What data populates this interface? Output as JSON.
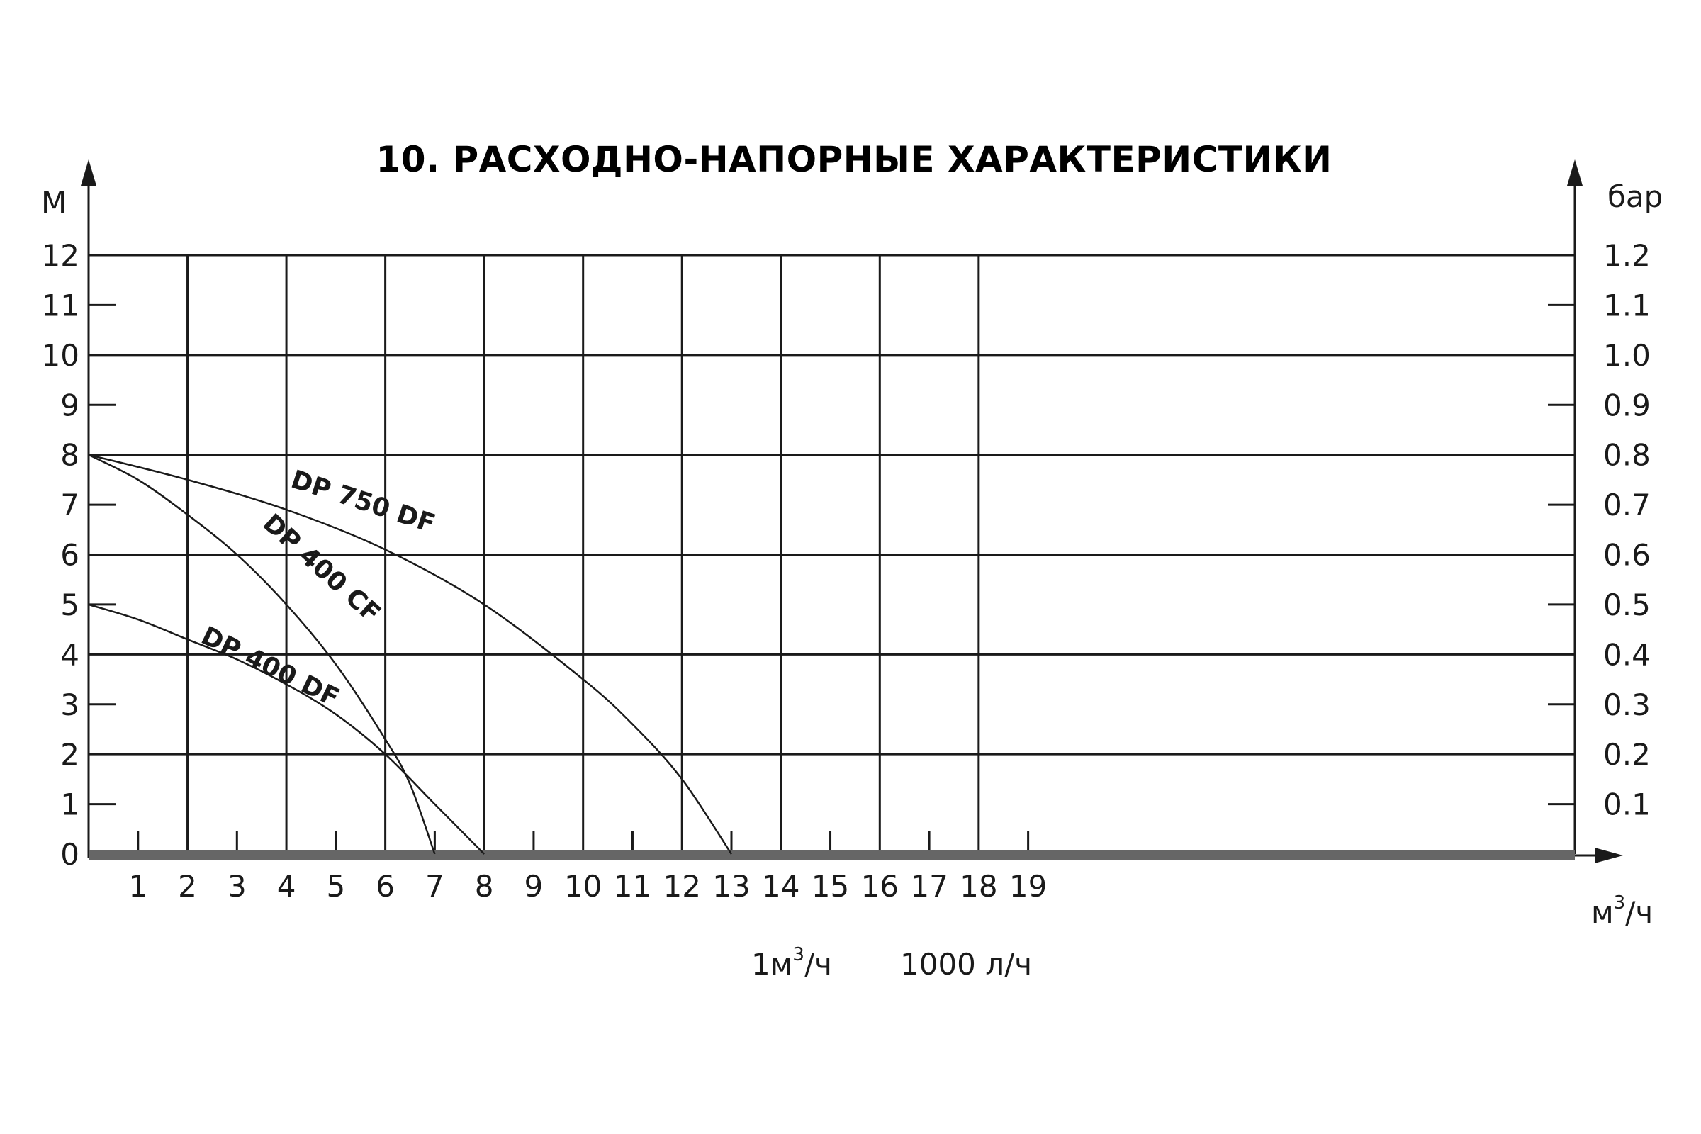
{
  "chart_data": {
    "type": "line",
    "title": "10. РАСХОДНО-НАПОРНЫЕ ХАРАКТЕРИСТИКИ",
    "ylabel": "М",
    "y2label": "бар",
    "xlabel_base": "м",
    "xlabel_sup": "3",
    "xlabel_tail": "/ч",
    "xlim": [
      0,
      20
    ],
    "ylim": [
      0,
      12
    ],
    "y2lim": [
      0,
      1.2
    ],
    "x_ticks": [
      1,
      2,
      3,
      4,
      5,
      6,
      7,
      8,
      9,
      10,
      11,
      12,
      13,
      14,
      15,
      16,
      17,
      18,
      19
    ],
    "y_ticks": [
      "0",
      "1",
      "2",
      "3",
      "4",
      "5",
      "6",
      "7",
      "8",
      "9",
      "10",
      "11",
      "12"
    ],
    "y2_ticks": [
      "",
      "0.1",
      "0.2",
      "0.3",
      "0.4",
      "0.5",
      "0.6",
      "0.7",
      "0.8",
      "0.9",
      "1.0",
      "1.1",
      "1.2"
    ],
    "grid": true,
    "series": [
      {
        "name": "DP 750 DF",
        "x": [
          0,
          2,
          4,
          6,
          8,
          10,
          11,
          12,
          13
        ],
        "y": [
          8,
          7.5,
          6.9,
          6.1,
          5.0,
          3.5,
          2.6,
          1.5,
          0
        ]
      },
      {
        "name": "DP 400 CF",
        "x": [
          0,
          1,
          2,
          3,
          4,
          5,
          6,
          6.5,
          7
        ],
        "y": [
          8,
          7.5,
          6.8,
          6.0,
          5.0,
          3.8,
          2.3,
          1.4,
          0
        ]
      },
      {
        "name": "DP 400 DF",
        "x": [
          0,
          1,
          2,
          3,
          4,
          5,
          6,
          7,
          8
        ],
        "y": [
          5,
          4.7,
          4.3,
          3.9,
          3.4,
          2.8,
          2.0,
          1.0,
          0
        ]
      }
    ],
    "note_left_base": "1м",
    "note_left_sup": "3",
    "note_left_tail": "/ч",
    "note_right": "1000 л/ч"
  }
}
